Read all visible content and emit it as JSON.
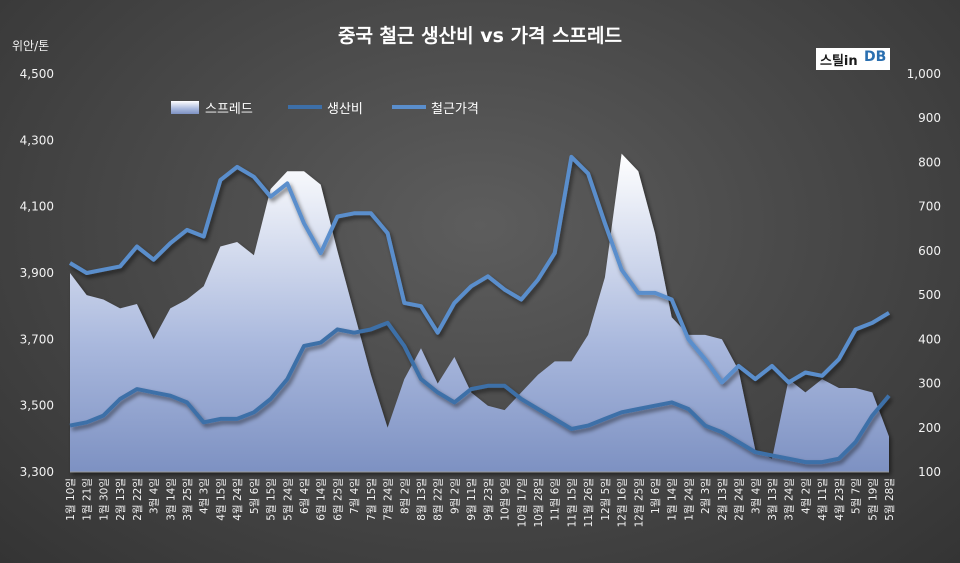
{
  "chart_data": {
    "type": "line",
    "title": "중국 철근 생산비 vs 가격 스프레드",
    "left_axis_unit": "위안/톤",
    "left_axis": {
      "min": 3300,
      "max": 4500,
      "ticks": [
        "3,300",
        "3,500",
        "3,700",
        "3,900",
        "4,100",
        "4,300",
        "4,500"
      ]
    },
    "right_axis": {
      "min": 100,
      "max": 1000,
      "ticks": [
        "100",
        "200",
        "300",
        "400",
        "500",
        "600",
        "700",
        "800",
        "900",
        "1,000"
      ]
    },
    "x_labels": [
      "1월 10일",
      "1월 21일",
      "1월 30일",
      "2월 13일",
      "2월 22일",
      "3월 4일",
      "3월 14일",
      "3월 25일",
      "4월 3일",
      "4월 15일",
      "4월 24일",
      "5월 6일",
      "5월 15일",
      "5월 24일",
      "6월 4일",
      "6월 14일",
      "6월 25일",
      "7월 4일",
      "7월 15일",
      "7월 24일",
      "8월 2일",
      "8월 13일",
      "8월 22일",
      "9월 2일",
      "9월 11일",
      "9월 23일",
      "10월 9일",
      "10월 17일",
      "10월 28일",
      "11월 6일",
      "11월 15일",
      "11월 26일",
      "12월 5일",
      "12월 16일",
      "12월 25일",
      "1월 6일",
      "1월 14일",
      "1월 24일",
      "2월 3일",
      "2월 13일",
      "2월 24일",
      "3월 4일",
      "3월 13일",
      "3월 24일",
      "4월 2일",
      "4월 11일",
      "4월 23일",
      "5월 7일",
      "5월 19일",
      "5월 28일"
    ],
    "legend": [
      {
        "name": "스프레드",
        "axis": "right",
        "style": "area"
      },
      {
        "name": "생산비",
        "axis": "left",
        "style": "line"
      },
      {
        "name": "철근가격",
        "axis": "left",
        "style": "line"
      }
    ],
    "series": [
      {
        "name": "스프레드",
        "axis": "right",
        "values": [
          550,
          500,
          490,
          470,
          480,
          400,
          470,
          490,
          520,
          610,
          620,
          590,
          740,
          780,
          780,
          750,
          600,
          460,
          320,
          200,
          310,
          380,
          300,
          360,
          280,
          250,
          240,
          280,
          320,
          350,
          350,
          410,
          540,
          820,
          780,
          640,
          450,
          410,
          410,
          400,
          330,
          150,
          130,
          310,
          280,
          310,
          290,
          290,
          280,
          180
        ]
      },
      {
        "name": "생산비",
        "axis": "left",
        "values": [
          3440,
          3450,
          3470,
          3520,
          3550,
          3540,
          3530,
          3510,
          3450,
          3460,
          3460,
          3480,
          3520,
          3580,
          3680,
          3690,
          3730,
          3720,
          3730,
          3750,
          3680,
          3580,
          3540,
          3510,
          3550,
          3560,
          3560,
          3520,
          3490,
          3460,
          3430,
          3440,
          3460,
          3480,
          3490,
          3500,
          3510,
          3490,
          3440,
          3420,
          3390,
          3360,
          3350,
          3340,
          3330,
          3330,
          3340,
          3390,
          3470,
          3530
        ]
      },
      {
        "name": "철근가격",
        "axis": "left",
        "values": [
          3930,
          3900,
          3910,
          3920,
          3980,
          3940,
          3990,
          4030,
          4010,
          4180,
          4220,
          4190,
          4130,
          4170,
          4050,
          3960,
          4070,
          4080,
          4080,
          4020,
          3810,
          3800,
          3720,
          3810,
          3860,
          3890,
          3850,
          3820,
          3880,
          3960,
          4250,
          4200,
          4050,
          3910,
          3840,
          3840,
          3820,
          3700,
          3640,
          3570,
          3620,
          3580,
          3620,
          3570,
          3600,
          3590,
          3640,
          3730,
          3750,
          3780
        ]
      }
    ],
    "colors": {
      "spread_fill_top": "#ffffff",
      "spread_fill_bottom": "#7f93c4",
      "cost_line": "#3d6fa8",
      "price_line": "#5a8ecc"
    }
  },
  "watermark": {
    "main": "스틸in",
    "suffix": "DB"
  }
}
